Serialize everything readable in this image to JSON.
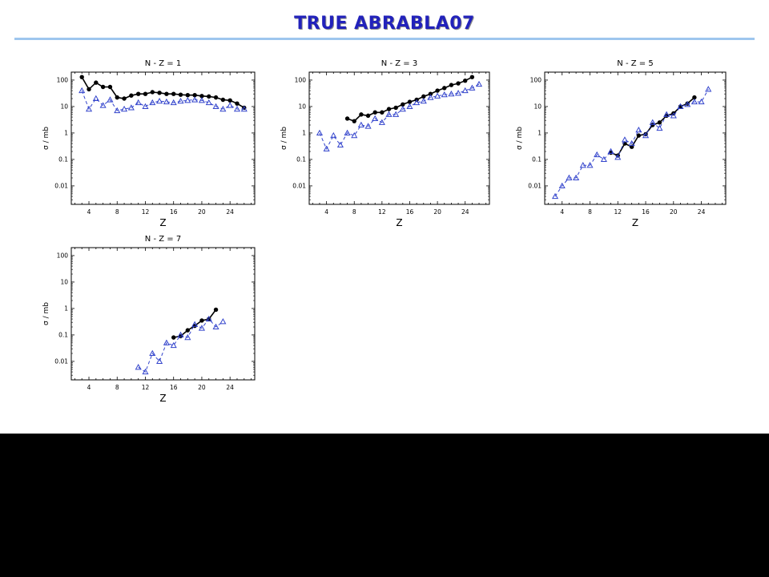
{
  "slide": {
    "title": "TRUE ABRABLA07"
  },
  "chart_data": [
    {
      "type": "line",
      "title": "N - Z = 1",
      "xlabel": "Z",
      "ylabel": "σ / mb",
      "yscale": "log",
      "xlim": [
        1.5,
        27.5
      ],
      "ylim": [
        0.002,
        200
      ],
      "xticks": [
        4,
        8,
        12,
        16,
        20,
        24
      ],
      "xtick_labels": [
        "4",
        "8",
        "12",
        "16",
        "20",
        "24"
      ],
      "yticks": [
        0.01,
        0.1,
        1,
        10,
        100
      ],
      "ytick_labels": [
        "0.01",
        "0.1",
        "1",
        "10",
        "100"
      ],
      "series": [
        {
          "marker": "filled-circle",
          "line": "solid",
          "color": "#000000",
          "x": [
            3,
            4,
            5,
            6,
            7,
            8,
            9,
            10,
            11,
            12,
            13,
            14,
            15,
            16,
            17,
            18,
            19,
            20,
            21,
            22,
            23,
            24,
            25,
            26
          ],
          "y": [
            130,
            45,
            80,
            55,
            55,
            22,
            20,
            26,
            30,
            30,
            35,
            33,
            30,
            30,
            28,
            27,
            27,
            25,
            24,
            22,
            18,
            17,
            13,
            9
          ]
        },
        {
          "marker": "open-triangle",
          "line": "dashed",
          "color": "#3344cc",
          "x": [
            3,
            4,
            5,
            6,
            7,
            8,
            9,
            10,
            11,
            12,
            13,
            14,
            15,
            16,
            17,
            18,
            19,
            20,
            21,
            22,
            23,
            24,
            25,
            26
          ],
          "y": [
            40,
            8,
            20,
            11,
            18,
            7,
            8,
            9,
            14,
            10,
            14,
            16,
            15,
            14,
            16,
            17,
            18,
            17,
            14,
            10,
            8,
            11,
            8,
            8
          ]
        }
      ]
    },
    {
      "type": "line",
      "title": "N - Z = 3",
      "xlabel": "Z",
      "ylabel": "σ / mb",
      "yscale": "log",
      "xlim": [
        1.5,
        27.5
      ],
      "ylim": [
        0.002,
        200
      ],
      "xticks": [
        4,
        8,
        12,
        16,
        20,
        24
      ],
      "xtick_labels": [
        "4",
        "8",
        "12",
        "16",
        "20",
        "24"
      ],
      "yticks": [
        0.01,
        0.1,
        1,
        10,
        100
      ],
      "ytick_labels": [
        "0.01",
        "0.1",
        "1",
        "10",
        "100"
      ],
      "series": [
        {
          "marker": "filled-circle",
          "line": "solid",
          "color": "#000000",
          "x": [
            7,
            8,
            9,
            10,
            11,
            12,
            13,
            14,
            15,
            16,
            17,
            18,
            19,
            20,
            21,
            22,
            23,
            24,
            25
          ],
          "y": [
            3.5,
            2.8,
            5,
            4.5,
            6,
            6,
            8,
            9,
            12,
            15,
            18,
            24,
            30,
            40,
            50,
            65,
            75,
            95,
            130
          ]
        },
        {
          "marker": "open-triangle",
          "line": "dashed",
          "color": "#3344cc",
          "x": [
            3,
            4,
            5,
            6,
            7,
            8,
            9,
            10,
            11,
            12,
            13,
            14,
            15,
            16,
            17,
            18,
            19,
            20,
            21,
            22,
            23,
            24,
            25,
            26
          ],
          "y": [
            1,
            0.25,
            0.8,
            0.35,
            1,
            0.8,
            2,
            1.8,
            3.5,
            2.5,
            5,
            5,
            8,
            10,
            14,
            16,
            22,
            25,
            28,
            30,
            32,
            40,
            50,
            70
          ]
        }
      ]
    },
    {
      "type": "line",
      "title": "N - Z = 5",
      "xlabel": "Z",
      "ylabel": "σ / mb",
      "yscale": "log",
      "xlim": [
        1.5,
        27.5
      ],
      "ylim": [
        0.002,
        200
      ],
      "xticks": [
        4,
        8,
        12,
        16,
        20,
        24
      ],
      "xtick_labels": [
        "4",
        "8",
        "12",
        "16",
        "20",
        "24"
      ],
      "yticks": [
        0.01,
        0.1,
        1,
        10,
        100
      ],
      "ytick_labels": [
        "0.01",
        "0.1",
        "1",
        "10",
        "100"
      ],
      "series": [
        {
          "marker": "filled-circle",
          "line": "solid",
          "color": "#000000",
          "x": [
            11,
            12,
            13,
            14,
            15,
            16,
            17,
            18,
            19,
            20,
            21,
            22,
            23
          ],
          "y": [
            0.18,
            0.14,
            0.4,
            0.3,
            0.8,
            0.9,
            2,
            2.5,
            4.5,
            5.5,
            10,
            13,
            22
          ]
        },
        {
          "marker": "open-triangle",
          "line": "dashed",
          "color": "#3344cc",
          "x": [
            3,
            4,
            5,
            6,
            7,
            8,
            9,
            10,
            11,
            12,
            13,
            14,
            15,
            16,
            17,
            18,
            19,
            20,
            21,
            22,
            23,
            24,
            25
          ],
          "y": [
            0.004,
            0.01,
            0.02,
            0.02,
            0.06,
            0.06,
            0.15,
            0.1,
            0.2,
            0.12,
            0.55,
            0.4,
            1.3,
            0.8,
            2.5,
            1.5,
            5,
            4.5,
            10,
            12,
            15,
            15,
            45
          ]
        }
      ]
    },
    {
      "type": "line",
      "title": "N - Z = 7",
      "xlabel": "Z",
      "ylabel": "σ / mb",
      "yscale": "log",
      "xlim": [
        1.5,
        27.5
      ],
      "ylim": [
        0.002,
        200
      ],
      "xticks": [
        4,
        8,
        12,
        16,
        20,
        24
      ],
      "xtick_labels": [
        "4",
        "8",
        "12",
        "16",
        "20",
        "24"
      ],
      "yticks": [
        0.01,
        0.1,
        1,
        10,
        100
      ],
      "ytick_labels": [
        "0.01",
        "0.1",
        "1",
        "10",
        "100"
      ],
      "series": [
        {
          "marker": "filled-circle",
          "line": "solid",
          "color": "#000000",
          "x": [
            16,
            17,
            18,
            19,
            20,
            21,
            22
          ],
          "y": [
            0.08,
            0.09,
            0.15,
            0.22,
            0.35,
            0.4,
            0.9
          ]
        },
        {
          "marker": "open-triangle",
          "line": "dashed",
          "color": "#3344cc",
          "x": [
            11,
            12,
            13,
            14,
            15,
            16,
            17,
            18,
            19,
            20,
            21,
            22,
            23
          ],
          "y": [
            0.006,
            0.004,
            0.02,
            0.01,
            0.05,
            0.04,
            0.1,
            0.08,
            0.25,
            0.18,
            0.4,
            0.2,
            0.32
          ]
        }
      ]
    }
  ]
}
